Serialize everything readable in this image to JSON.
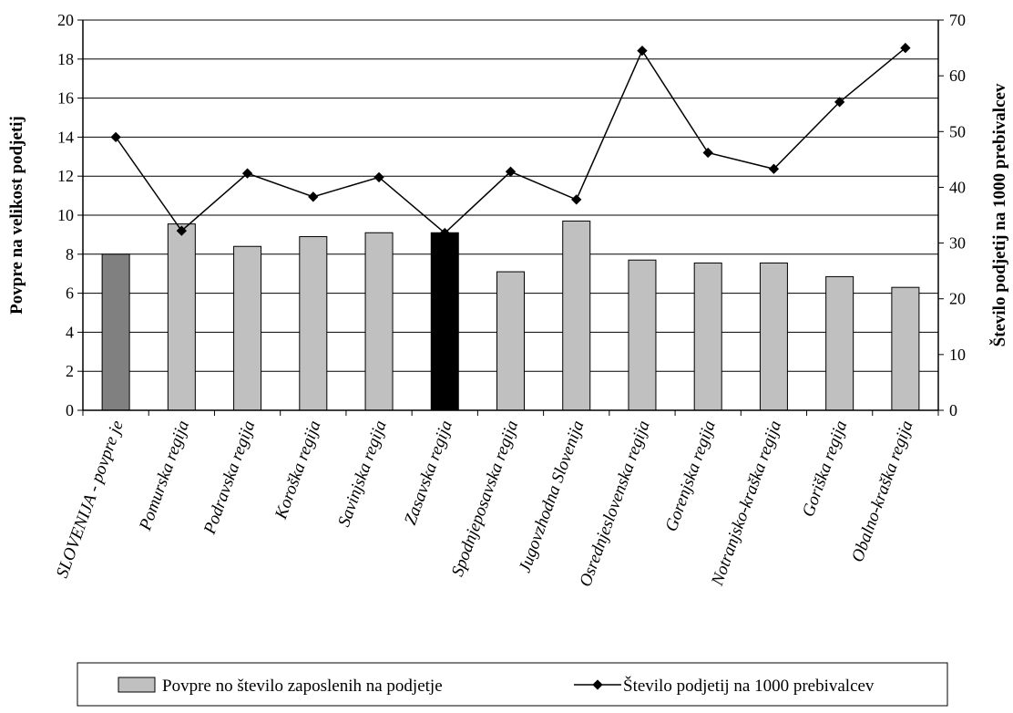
{
  "chart_data": {
    "type": "bar",
    "categories": [
      "SLOVENIJA - povpre je",
      "Pomurska regija",
      "Podravska regija",
      "Koroška regija",
      "Savinjska regija",
      "Zasavska regija",
      "Spodnjeposavska regija",
      "Jugovzhodna Slovenija",
      "Osrednjeslovenska  regija",
      "Gorenjska regija",
      "Notranjsko-kraška  regija",
      "Goriška regija",
      "Obalno-kraška regija"
    ],
    "series": [
      {
        "name": "Povpre no število zaposlenih na podjetje",
        "type": "bar",
        "axis": "left",
        "values": [
          8.0,
          9.55,
          8.4,
          8.9,
          9.1,
          9.1,
          7.1,
          9.7,
          7.7,
          7.55,
          7.55,
          6.85,
          6.3
        ],
        "colors": [
          "#808080",
          "#c0c0c0",
          "#c0c0c0",
          "#c0c0c0",
          "#c0c0c0",
          "#000000",
          "#c0c0c0",
          "#c0c0c0",
          "#c0c0c0",
          "#c0c0c0",
          "#c0c0c0",
          "#c0c0c0",
          "#c0c0c0"
        ]
      },
      {
        "name": "Število podjetij na 1000 prebivalcev",
        "type": "line",
        "axis": "right",
        "color": "#000000",
        "values": [
          49,
          32.2,
          42.5,
          38.3,
          41.8,
          31.8,
          42.8,
          37.8,
          64.5,
          46.2,
          43.3,
          55.3,
          65
        ]
      }
    ],
    "ylabel": "Povpre  na velikost podjetij",
    "ylabel_right": "Število podjetij na 1000 prebivalcev",
    "ylim": [
      0,
      20
    ],
    "ylim_right": [
      0,
      70
    ],
    "yticks": [
      "0",
      "2",
      "4",
      "6",
      "8",
      "10",
      "12",
      "14",
      "16",
      "18",
      "20"
    ],
    "yticks_right": [
      "0",
      "10",
      "20",
      "30",
      "40",
      "50",
      "60",
      "70"
    ],
    "grid": true,
    "legend_position": "bottom"
  }
}
